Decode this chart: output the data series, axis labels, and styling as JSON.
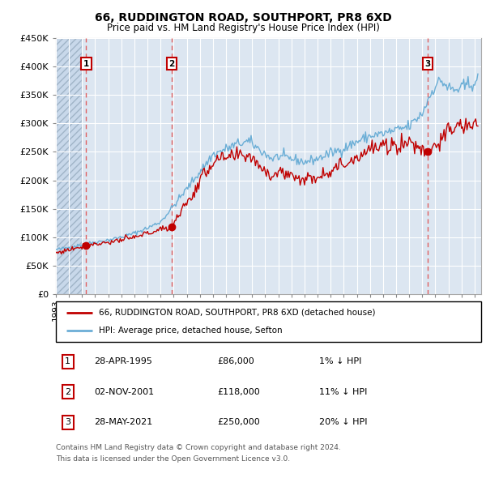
{
  "title": "66, RUDDINGTON ROAD, SOUTHPORT, PR8 6XD",
  "subtitle": "Price paid vs. HM Land Registry's House Price Index (HPI)",
  "legend_line1": "66, RUDDINGTON ROAD, SOUTHPORT, PR8 6XD (detached house)",
  "legend_line2": "HPI: Average price, detached house, Sefton",
  "footer_line1": "Contains HM Land Registry data © Crown copyright and database right 2024.",
  "footer_line2": "This data is licensed under the Open Government Licence v3.0.",
  "transactions": [
    {
      "num": 1,
      "date": "28-APR-1995",
      "price": 86000,
      "pct": "1%",
      "direction": "↓"
    },
    {
      "num": 2,
      "date": "02-NOV-2001",
      "price": 118000,
      "pct": "11%",
      "direction": "↓"
    },
    {
      "num": 3,
      "date": "28-MAY-2021",
      "price": 250000,
      "pct": "20%",
      "direction": "↓"
    }
  ],
  "sale_dates_decimal": [
    1995.32,
    2001.84,
    2021.41
  ],
  "sale_prices": [
    86000,
    118000,
    250000
  ],
  "hpi_color": "#6baed6",
  "price_color": "#c00000",
  "dashed_line_color": "#e06060",
  "background_plot": "#dce6f1",
  "grid_color": "#ffffff",
  "ylim": [
    0,
    450000
  ],
  "yticks": [
    0,
    50000,
    100000,
    150000,
    200000,
    250000,
    300000,
    350000,
    400000,
    450000
  ],
  "xlim_start": 1993.0,
  "xlim_end": 2025.5,
  "hatch_end": 1995.0,
  "hpi_anchors_t": [
    1993.0,
    1994.0,
    1995.0,
    1996.0,
    1997.0,
    1998.0,
    1999.0,
    2000.0,
    2001.0,
    2002.0,
    2003.0,
    2004.0,
    2005.0,
    2006.0,
    2007.0,
    2007.8,
    2008.5,
    2009.5,
    2010.0,
    2011.0,
    2012.0,
    2013.0,
    2014.0,
    2015.0,
    2016.0,
    2017.0,
    2018.0,
    2019.0,
    2020.0,
    2021.0,
    2021.5,
    2022.0,
    2022.5,
    2023.0,
    2023.5,
    2024.0,
    2024.5,
    2025.3
  ],
  "hpi_anchors_v": [
    78000,
    82000,
    87000,
    91000,
    95000,
    100000,
    107000,
    116000,
    127000,
    155000,
    185000,
    215000,
    245000,
    255000,
    265000,
    268000,
    255000,
    238000,
    242000,
    238000,
    232000,
    238000,
    248000,
    256000,
    268000,
    278000,
    282000,
    288000,
    295000,
    318000,
    345000,
    368000,
    375000,
    362000,
    358000,
    362000,
    368000,
    375000
  ],
  "price_anchors_t": [
    1993.0,
    1994.0,
    1995.32,
    1996.0,
    1997.0,
    1998.0,
    1999.0,
    2000.0,
    2001.84,
    2002.5,
    2003.5,
    2004.0,
    2005.0,
    2006.0,
    2007.0,
    2007.8,
    2008.5,
    2009.5,
    2010.0,
    2011.0,
    2012.0,
    2013.0,
    2014.0,
    2015.0,
    2016.0,
    2017.0,
    2018.0,
    2019.0,
    2020.0,
    2021.41,
    2022.0,
    2022.5,
    2023.0,
    2023.5,
    2024.0,
    2024.5,
    2025.3
  ],
  "price_anchors_v": [
    72000,
    78000,
    86000,
    88000,
    91000,
    95000,
    99000,
    107000,
    118000,
    145000,
    175000,
    200000,
    232000,
    238000,
    242000,
    245000,
    228000,
    208000,
    215000,
    210000,
    200000,
    208000,
    218000,
    228000,
    242000,
    255000,
    258000,
    262000,
    268000,
    250000,
    265000,
    268000,
    288000,
    292000,
    295000,
    296000,
    300000
  ]
}
